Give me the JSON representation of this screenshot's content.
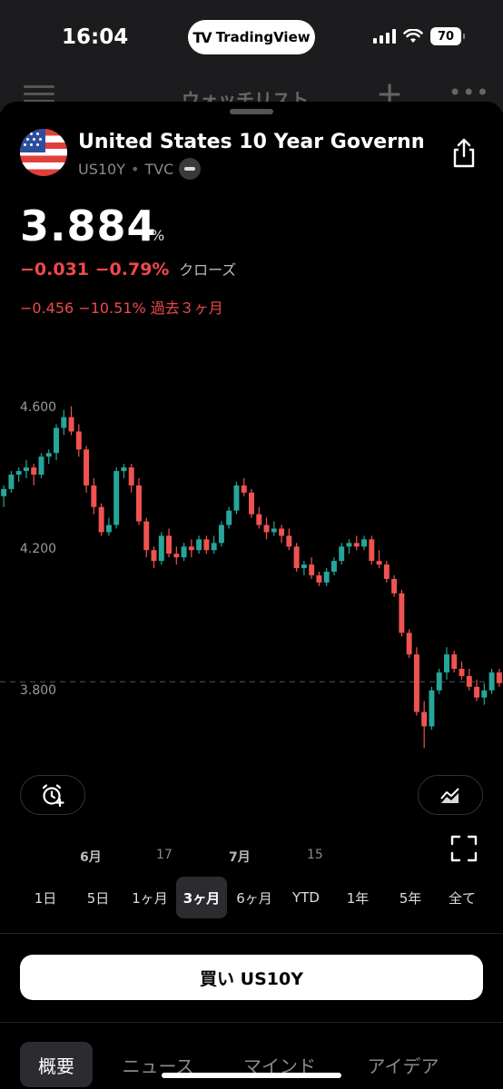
{
  "status_bar": {
    "time": "16:04",
    "app_pill": "TradingView",
    "battery": "70"
  },
  "behind_header": {
    "title": "ウォッチリスト"
  },
  "instrument": {
    "name": "United States 10 Year Governm...",
    "symbol": "US10Y",
    "separator": "•",
    "exchange": "TVC",
    "price": "3.884",
    "unit": "%",
    "change": "−0.031 −0.79%",
    "session": "クローズ",
    "change_3m": "−0.456 −10.51% 過去３ヶ月"
  },
  "chart_data": {
    "type": "candlestick",
    "y_ticks": [
      "4.600",
      "4.200",
      "3.800"
    ],
    "x_ticks": [
      "6月",
      "17",
      "7月",
      "15"
    ],
    "last_price_line": 3.884,
    "ylim": [
      3.66,
      4.72
    ],
    "up_color": "#26a69a",
    "down_color": "#ef5350",
    "candles": [
      [
        4.4,
        4.43,
        4.37,
        4.42
      ],
      [
        4.42,
        4.47,
        4.41,
        4.46
      ],
      [
        4.46,
        4.48,
        4.44,
        4.47
      ],
      [
        4.47,
        4.5,
        4.45,
        4.48
      ],
      [
        4.48,
        4.49,
        4.43,
        4.46
      ],
      [
        4.46,
        4.52,
        4.45,
        4.51
      ],
      [
        4.51,
        4.53,
        4.49,
        4.52
      ],
      [
        4.52,
        4.6,
        4.5,
        4.59
      ],
      [
        4.59,
        4.64,
        4.57,
        4.62
      ],
      [
        4.62,
        4.65,
        4.57,
        4.58
      ],
      [
        4.58,
        4.6,
        4.51,
        4.53
      ],
      [
        4.53,
        4.54,
        4.41,
        4.43
      ],
      [
        4.43,
        4.45,
        4.35,
        4.37
      ],
      [
        4.37,
        4.38,
        4.29,
        4.3
      ],
      [
        4.3,
        4.34,
        4.29,
        4.32
      ],
      [
        4.32,
        4.48,
        4.31,
        4.47
      ],
      [
        4.47,
        4.49,
        4.45,
        4.48
      ],
      [
        4.48,
        4.49,
        4.41,
        4.43
      ],
      [
        4.43,
        4.45,
        4.32,
        4.33
      ],
      [
        4.33,
        4.34,
        4.23,
        4.25
      ],
      [
        4.25,
        4.26,
        4.2,
        4.22
      ],
      [
        4.22,
        4.3,
        4.21,
        4.29
      ],
      [
        4.29,
        4.31,
        4.23,
        4.24
      ],
      [
        4.24,
        4.26,
        4.21,
        4.23
      ],
      [
        4.23,
        4.27,
        4.22,
        4.26
      ],
      [
        4.26,
        4.28,
        4.23,
        4.25
      ],
      [
        4.25,
        4.29,
        4.24,
        4.28
      ],
      [
        4.28,
        4.29,
        4.24,
        4.25
      ],
      [
        4.25,
        4.29,
        4.24,
        4.27
      ],
      [
        4.27,
        4.33,
        4.26,
        4.32
      ],
      [
        4.32,
        4.37,
        4.31,
        4.36
      ],
      [
        4.36,
        4.44,
        4.35,
        4.43
      ],
      [
        4.43,
        4.45,
        4.4,
        4.41
      ],
      [
        4.41,
        4.42,
        4.34,
        4.35
      ],
      [
        4.35,
        4.37,
        4.31,
        4.32
      ],
      [
        4.32,
        4.34,
        4.28,
        4.3
      ],
      [
        4.3,
        4.33,
        4.29,
        4.31
      ],
      [
        4.31,
        4.32,
        4.27,
        4.29
      ],
      [
        4.29,
        4.31,
        4.25,
        4.26
      ],
      [
        4.26,
        4.27,
        4.19,
        4.2
      ],
      [
        4.2,
        4.22,
        4.18,
        4.21
      ],
      [
        4.21,
        4.23,
        4.17,
        4.18
      ],
      [
        4.18,
        4.19,
        4.15,
        4.16
      ],
      [
        4.16,
        4.2,
        4.15,
        4.19
      ],
      [
        4.19,
        4.23,
        4.18,
        4.22
      ],
      [
        4.22,
        4.27,
        4.21,
        4.26
      ],
      [
        4.26,
        4.28,
        4.24,
        4.27
      ],
      [
        4.27,
        4.29,
        4.25,
        4.26
      ],
      [
        4.26,
        4.29,
        4.25,
        4.28
      ],
      [
        4.28,
        4.29,
        4.21,
        4.22
      ],
      [
        4.22,
        4.25,
        4.2,
        4.21
      ],
      [
        4.21,
        4.22,
        4.16,
        4.17
      ],
      [
        4.17,
        4.18,
        4.12,
        4.13
      ],
      [
        4.13,
        4.14,
        4.01,
        4.02
      ],
      [
        4.02,
        4.03,
        3.95,
        3.96
      ],
      [
        3.96,
        3.98,
        3.79,
        3.8
      ],
      [
        3.8,
        3.83,
        3.7,
        3.76
      ],
      [
        3.76,
        3.87,
        3.75,
        3.86
      ],
      [
        3.86,
        3.92,
        3.85,
        3.91
      ],
      [
        3.91,
        3.98,
        3.89,
        3.96
      ],
      [
        3.96,
        3.97,
        3.91,
        3.92
      ],
      [
        3.92,
        3.94,
        3.89,
        3.9
      ],
      [
        3.9,
        3.92,
        3.86,
        3.87
      ],
      [
        3.87,
        3.89,
        3.83,
        3.84
      ],
      [
        3.84,
        3.88,
        3.82,
        3.86
      ],
      [
        3.86,
        3.92,
        3.85,
        3.91
      ],
      [
        3.91,
        3.92,
        3.87,
        3.88
      ]
    ]
  },
  "ranges": [
    "1日",
    "5日",
    "1ヶ月",
    "3ヶ月",
    "6ヶ月",
    "YTD",
    "1年",
    "5年",
    "全て"
  ],
  "active_range": "3ヶ月",
  "buy_button": "買い US10Y",
  "tabs": [
    "概要",
    "ニュース",
    "マインド",
    "アイデア"
  ]
}
